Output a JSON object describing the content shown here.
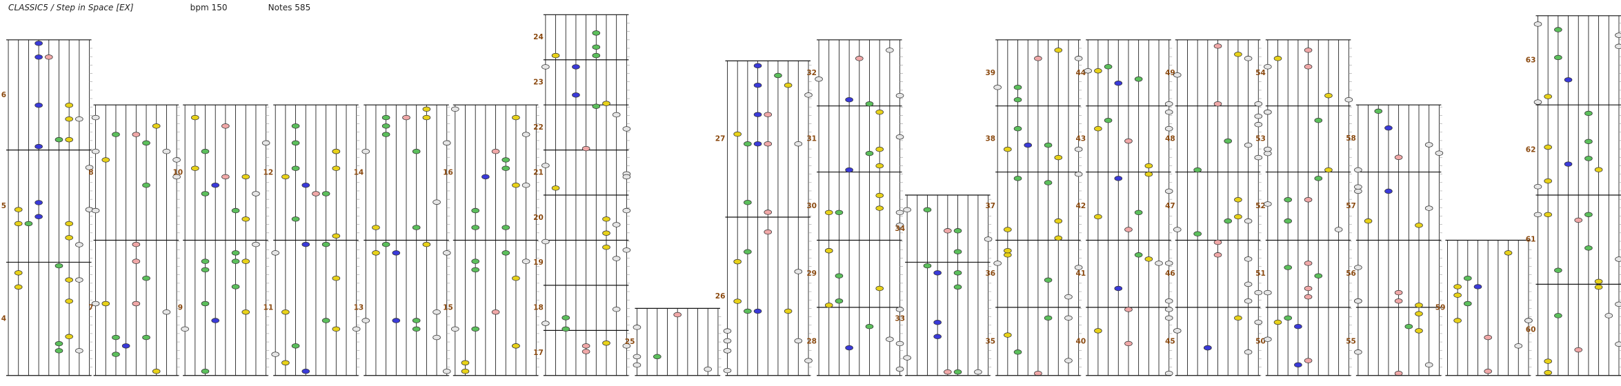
{
  "header": {
    "title": "CLASSIC5 / Step in Space [EX]",
    "bpm": "bpm 150",
    "notes": "Notes 585"
  },
  "measures": [
    4,
    5,
    6,
    7,
    8,
    9,
    10,
    11,
    12,
    13,
    14,
    15,
    16,
    17,
    18,
    19,
    20,
    21,
    22,
    23,
    24,
    25,
    26,
    27,
    28,
    29,
    30,
    31,
    32,
    33,
    34,
    35,
    36,
    37,
    38,
    39,
    40,
    41,
    42,
    43,
    44,
    45,
    46,
    47,
    48,
    49,
    50,
    51,
    52,
    53,
    54,
    55,
    56,
    57,
    58,
    59,
    60,
    61,
    62,
    63
  ]
}
